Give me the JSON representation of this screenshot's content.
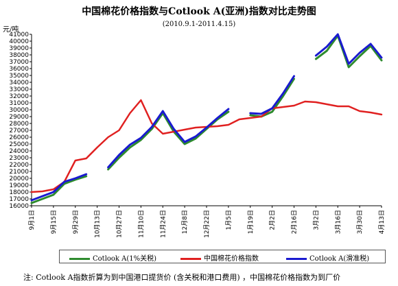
{
  "chart_data": {
    "type": "line",
    "title": "中国棉花价格指数与Cotlook A(亚洲)指数对比走势图",
    "subtitle": "(2010.9.1-2011.4.15)",
    "ylabel": "元/吨",
    "ylim": [
      16000,
      41000
    ],
    "yticks": [
      16000,
      17000,
      18000,
      19000,
      20000,
      21000,
      22000,
      23000,
      24000,
      25000,
      26000,
      27000,
      28000,
      29000,
      30000,
      31000,
      32000,
      33000,
      34000,
      35000,
      36000,
      37000,
      38000,
      39000,
      40000,
      41000
    ],
    "xticks": [
      "9月1日",
      "9月15日",
      "9月29日",
      "10月13日",
      "10月27日",
      "11月10日",
      "11月24日",
      "12月8日",
      "12月22日",
      "1月5日",
      "1月19日",
      "2月2日",
      "2月16日",
      "3月2日",
      "3月16日",
      "3月30日",
      "4月13日"
    ],
    "x": [
      0,
      7,
      14,
      21,
      28,
      35,
      42,
      49,
      56,
      63,
      70,
      77,
      84,
      91,
      98,
      105,
      112,
      119,
      126,
      133,
      140,
      147,
      154,
      161,
      168,
      175,
      182,
      189,
      196,
      203,
      210,
      217,
      224
    ],
    "grid": false,
    "legend_position": "bottom",
    "series": [
      {
        "name": "Cotlook A(1%关税)",
        "color": "#2e8b2e",
        "values": [
          16400,
          17000,
          17600,
          19200,
          19800,
          20300,
          null,
          21300,
          23000,
          24500,
          25600,
          27200,
          29500,
          26800,
          25000,
          25800,
          27200,
          28600,
          29700,
          null,
          29200,
          29000,
          29700,
          32000,
          34500,
          null,
          37400,
          38600,
          40800,
          36200,
          37800,
          39300,
          37200
        ]
      },
      {
        "name": "中国棉花价格指数",
        "color": "#e02020",
        "values": [
          18000,
          18100,
          18400,
          19500,
          22600,
          22900,
          24500,
          26000,
          27000,
          29500,
          31400,
          28000,
          26500,
          26800,
          27100,
          27400,
          27500,
          27600,
          27800,
          28600,
          28800,
          29000,
          30200,
          30400,
          30600,
          31200,
          31100,
          30800,
          30500,
          30500,
          29800,
          29600,
          29300
        ]
      },
      {
        "name": "Cotlook A(滑准税)",
        "color": "#1a1ad0",
        "values": [
          16800,
          17400,
          18000,
          19500,
          20000,
          20600,
          null,
          21600,
          23400,
          24900,
          25900,
          27500,
          29800,
          27200,
          25300,
          26100,
          27400,
          28800,
          30100,
          null,
          29500,
          29400,
          30200,
          32400,
          34900,
          null,
          37900,
          39200,
          41000,
          36700,
          38300,
          39600,
          37600
        ]
      }
    ]
  },
  "note": "注: Cotlook A指数折算为到中国港口提货价 (含关税和港口费用) ，中国棉花价格指数为到厂价"
}
